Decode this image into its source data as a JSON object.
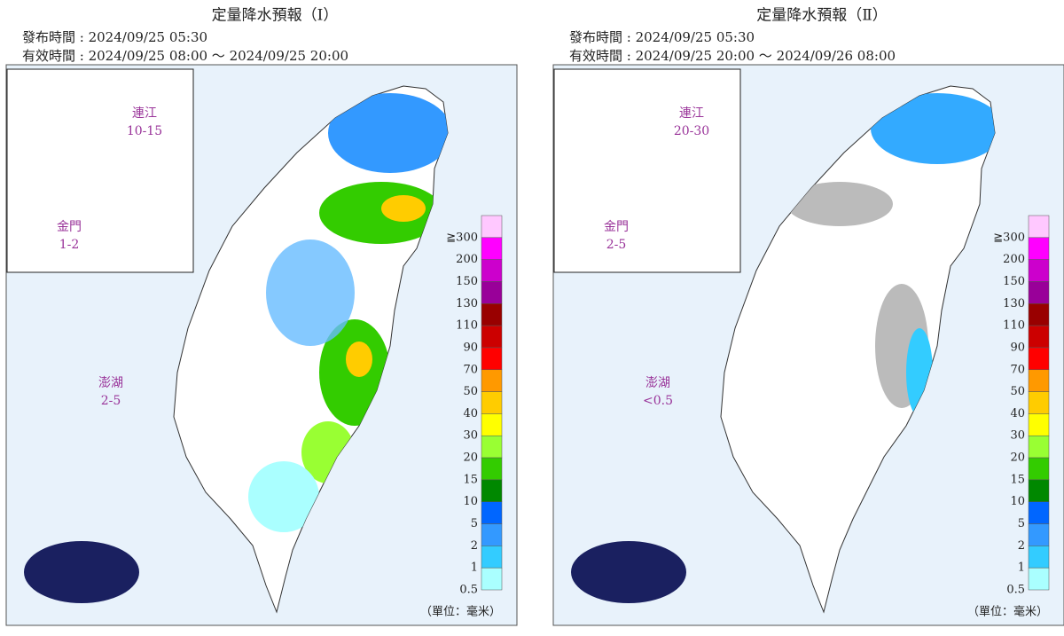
{
  "panels": [
    {
      "title": "定量降水預報（Ⅰ）",
      "issued": "發布時間 : 2024/09/25 05:30",
      "valid": "有效時間 : 2024/09/25 08:00 ～ 2024/09/25 20:00",
      "regions": [
        {
          "name": "連江",
          "range": "10-15"
        },
        {
          "name": "金門",
          "range": "1-2"
        },
        {
          "name": "澎湖",
          "range": "2-5"
        }
      ],
      "unit": "（單位：毫米）"
    },
    {
      "title": "定量降水預報（Ⅱ）",
      "issued": "發布時間 : 2024/09/25 05:30",
      "valid": "有效時間 : 2024/09/25 20:00 ～ 2024/09/26 08:00",
      "regions": [
        {
          "name": "連江",
          "range": "20-30"
        },
        {
          "name": "金門",
          "range": "2-5"
        },
        {
          "name": "澎湖",
          "range": "<0.5"
        }
      ],
      "unit": "（單位：毫米）"
    }
  ],
  "legend": {
    "labels": [
      "≧300",
      "200",
      "150",
      "130",
      "110",
      "90",
      "70",
      "50",
      "40",
      "30",
      "20",
      "15",
      "10",
      "5",
      "2",
      "1",
      "0.5"
    ],
    "colors": [
      "#ffc8ff",
      "#ff00ff",
      "#cc00cc",
      "#990099",
      "#990000",
      "#cc0000",
      "#ff0000",
      "#ff9900",
      "#ffcc00",
      "#ffff00",
      "#99ff33",
      "#33cc00",
      "#008800",
      "#0066ff",
      "#3399ff",
      "#33ccff",
      "#aaffff",
      "#aaaaaa"
    ]
  }
}
